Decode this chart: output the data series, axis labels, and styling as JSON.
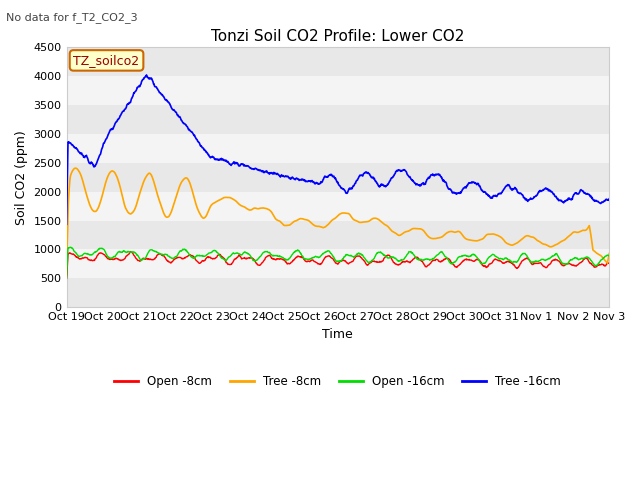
{
  "title": "Tonzi Soil CO2 Profile: Lower CO2",
  "subtitle": "No data for f_T2_CO2_3",
  "ylabel": "Soil CO2 (ppm)",
  "xlabel": "Time",
  "legend_label": "TZ_soilco2",
  "series_labels": [
    "Open -8cm",
    "Tree -8cm",
    "Open -16cm",
    "Tree -16cm"
  ],
  "series_colors": [
    "#ff0000",
    "#ffa500",
    "#00dd00",
    "#0000ff"
  ],
  "ylim": [
    0,
    4500
  ],
  "yticks": [
    0,
    500,
    1000,
    1500,
    2000,
    2500,
    3000,
    3500,
    4000,
    4500
  ],
  "xtick_labels": [
    "Oct 19",
    "Oct 20",
    "Oct 21",
    "Oct 22",
    "Oct 23",
    "Oct 24",
    "Oct 25",
    "Oct 26",
    "Oct 27",
    "Oct 28",
    "Oct 29",
    "Oct 30",
    "Oct 31",
    "Nov 1",
    "Nov 2",
    "Nov 3"
  ],
  "bg_color": "#ffffff",
  "plot_bg_color": "#ffffff",
  "band_colors": [
    "#e8e8e8",
    "#f4f4f4"
  ],
  "grid_color": "#ffffff",
  "title_fontsize": 11,
  "axis_fontsize": 9,
  "tick_fontsize": 8,
  "subtitle_fontsize": 8
}
